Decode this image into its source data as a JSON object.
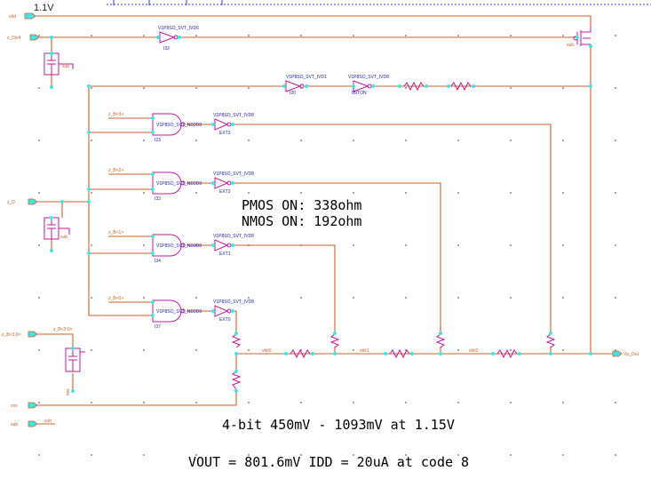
{
  "header": {
    "supply_label": "1.1V"
  },
  "pins": {
    "vdd": "vdd",
    "z_dis": "z_Dis4",
    "z_d": "z_D",
    "z_b_bus": "z_B<3:0>",
    "vss": "vss",
    "sub": "sub",
    "out": "Vp_Out"
  },
  "nets": {
    "sub_top": "sub",
    "sub_mid": "sub",
    "sub_low": "sub",
    "vss_low": "vss",
    "bus_low": "z_B<3:0>",
    "vbit0": "vbit0",
    "vbit1": "vbit1",
    "vbit2": "vbit2",
    "in_b3": "z_B<3>",
    "in_b2": "z_B<2>",
    "in_b1": "z_B<1>",
    "in_b0": "z_B<0>"
  },
  "gates": {
    "inv_top": {
      "cell": "V1P8SO_SVT_IVD6",
      "inst": "I32"
    },
    "inv_r1": {
      "cell": "V1P8SO_SVT_IVD1",
      "inst": "I20"
    },
    "inv_r2": {
      "cell": "V1P8SO_SVT_IVD8",
      "inst": "IBITON"
    },
    "nand3": {
      "cell": "V1P8SO_SVT_ND2D0",
      "inst": "I23",
      "inv": "V1P8SO_SVT_IVD8",
      "inv_inst": "EXT3"
    },
    "nand2": {
      "cell": "V1P8SO_SVT_ND2D0",
      "inst": "I33",
      "inv": "V1P8SO_SVT_IVD8",
      "inv_inst": "EXT2"
    },
    "nand1": {
      "cell": "V1P8SO_SVT_ND2D0",
      "inst": "I34",
      "inv": "V1P8SO_SVT_IVD8",
      "inv_inst": "EXT1"
    },
    "nand0": {
      "cell": "V1P8SO_SVT_ND2D0",
      "inst": "I37",
      "inv": "V1P8SO_SVT_IVD8",
      "inv_inst": "EXT0"
    }
  },
  "annotations": {
    "pmos_on": "PMOS ON: 338ohm",
    "nmos_on": "NMOS ON: 192ohm",
    "range": "4-bit 450mV - 1093mV at 1.15V",
    "vout": "VOUT = 801.6mV IDD = 20uA at code 8"
  },
  "colors": {
    "wire": "#c8622c",
    "pin": "#c8622c",
    "gate": "#c2189b",
    "label": "#1a1aa8",
    "node": "#3fe6e6",
    "grid": "#8a8a8a",
    "text": "#000000",
    "dotted": "#3a3ad0"
  }
}
